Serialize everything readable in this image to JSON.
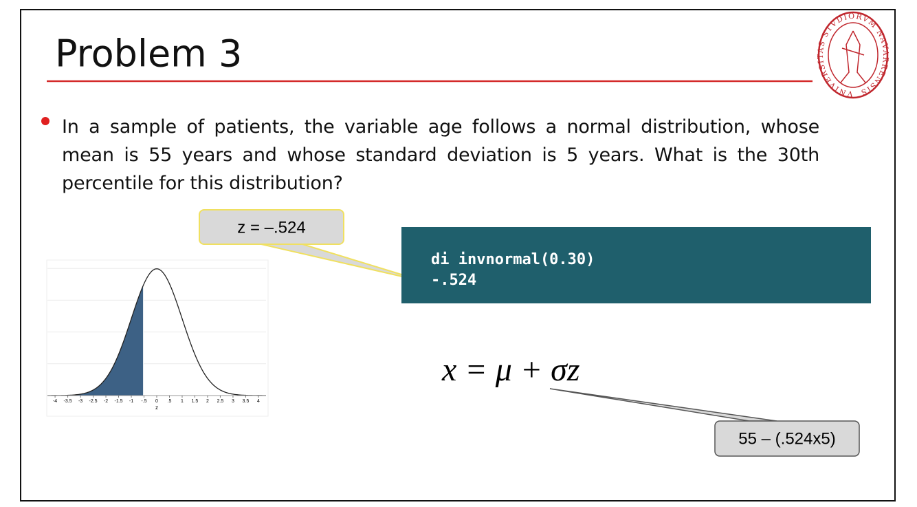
{
  "header": {
    "title": "Problem 3"
  },
  "logo": {
    "text": "VNIVERSITAS STVDIORVM NAVARRENSIS"
  },
  "bullet": "In a sample of patients, the variable age follows a normal distribution, whose mean is 55 years and whose standard deviation is 5 years. What is the 30th percentile for this distribution?",
  "callouts": [
    {
      "text": "z = –.524"
    },
    {
      "text": "55 – (.524x5)"
    }
  ],
  "code": {
    "lines": [
      "di invnormal(0.30)",
      "-.524"
    ]
  },
  "formula": "x = μ + σz",
  "chart_data": {
    "type": "normal-density",
    "x_label": "z",
    "mean": 0,
    "sd": 1,
    "shade_to": -0.524,
    "color": "#222222",
    "shade_color": "#3d6185",
    "xlim": [
      -4.3,
      4.3
    ],
    "ylim": [
      0,
      0.42
    ],
    "xticks": [
      -4,
      -3.5,
      -3,
      -2.5,
      -2,
      -1.5,
      -1,
      {
        "value": -0.5,
        "label": "-.5"
      },
      0,
      {
        "value": 0.5,
        "label": ".5"
      },
      1,
      1.5,
      2,
      2.5,
      3,
      3.5,
      4
    ],
    "grid_y": [
      0.1,
      0.2,
      0.3,
      0.4
    ]
  }
}
